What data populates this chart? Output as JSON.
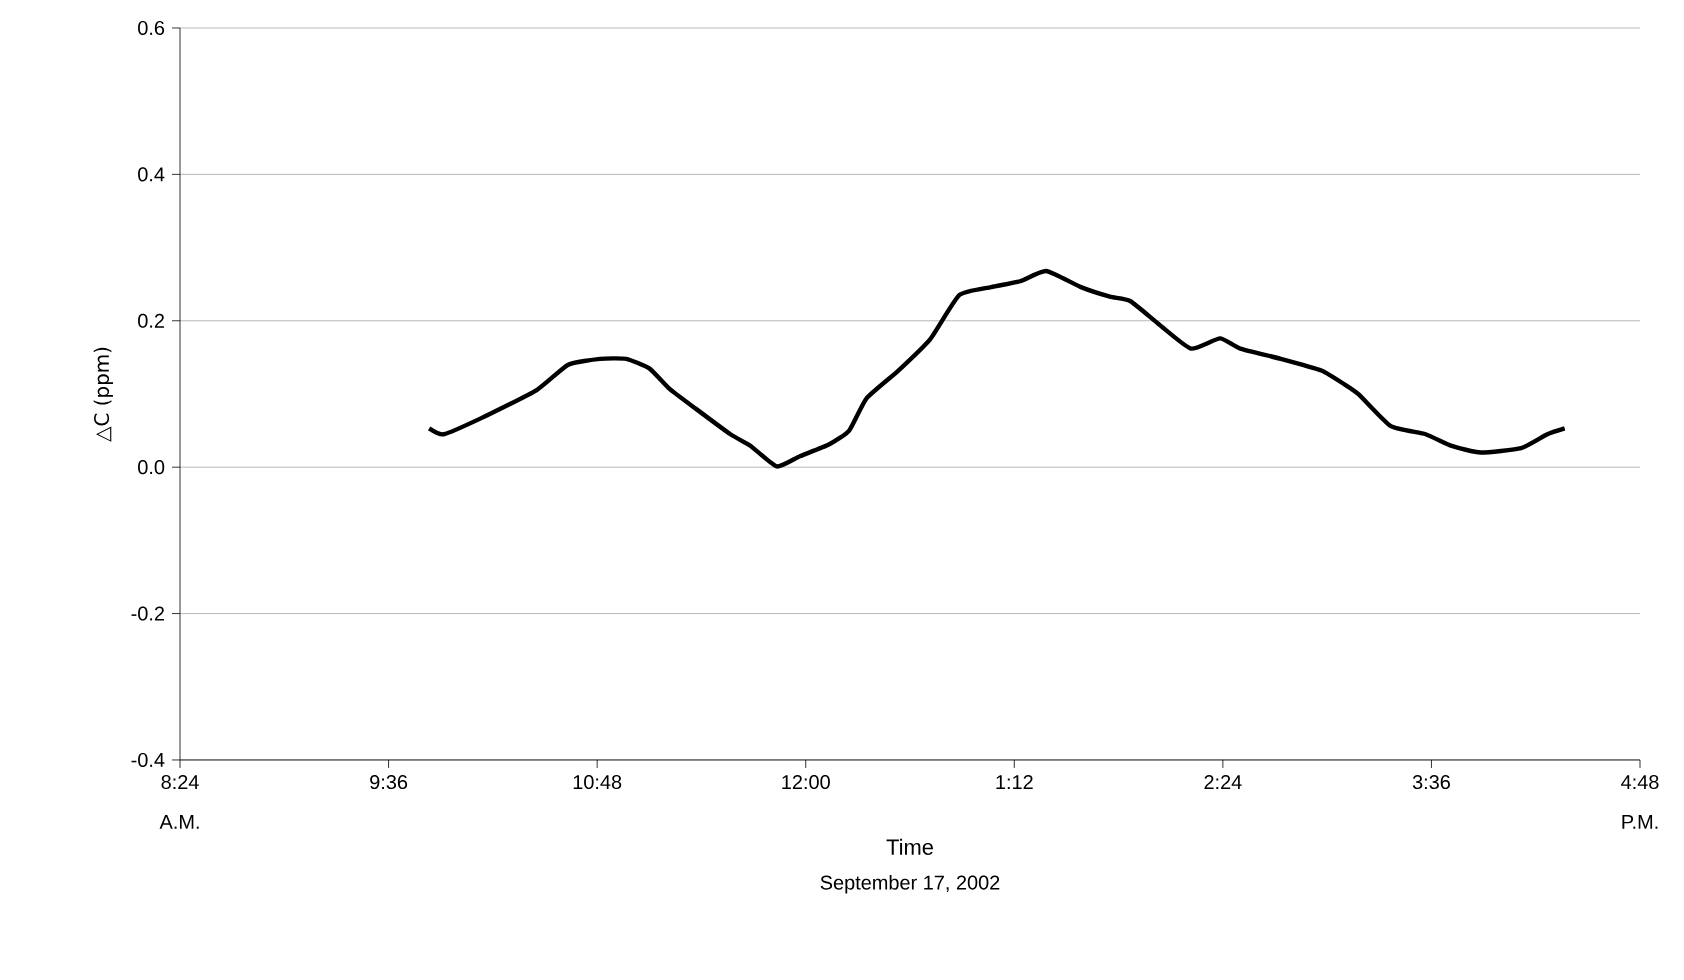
{
  "chart_data": {
    "type": "line",
    "xlabel": "Time",
    "ylabel": "△C (ppm)",
    "annotations": [
      "A.M.",
      "P.M.",
      "September 17, 2002"
    ],
    "x": [
      "2002-09-17T09:50",
      "2002-09-17T09:55",
      "2002-09-17T10:08",
      "2002-09-17T10:27",
      "2002-09-17T10:38",
      "2002-09-17T10:49",
      "2002-09-17T10:58",
      "2002-09-17T11:06",
      "2002-09-17T11:13",
      "2002-09-17T11:22",
      "2002-09-17T11:34",
      "2002-09-17T11:41",
      "2002-09-17T11:50",
      "2002-09-17T11:58",
      "2002-09-17T12:08",
      "2002-09-17T12:15",
      "2002-09-17T12:21",
      "2002-09-17T12:32",
      "2002-09-17T12:43",
      "2002-09-17T12:53",
      "2002-09-17T13:04",
      "2002-09-17T13:14",
      "2002-09-17T13:23",
      "2002-09-17T13:35",
      "2002-09-17T13:45",
      "2002-09-17T13:52",
      "2002-09-17T14:02",
      "2002-09-17T14:13",
      "2002-09-17T14:23",
      "2002-09-17T14:30",
      "2002-09-17T14:44",
      "2002-09-17T14:58",
      "2002-09-17T15:06",
      "2002-09-17T15:11",
      "2002-09-17T15:22",
      "2002-09-17T15:34",
      "2002-09-17T15:43",
      "2002-09-17T15:53",
      "2002-09-17T16:07",
      "2002-09-17T16:16",
      "2002-09-17T16:22"
    ],
    "series": [
      {
        "color": "#000000",
        "values": [
          0.053,
          0.045,
          0.067,
          0.105,
          0.14,
          0.148,
          0.148,
          0.135,
          0.107,
          0.08,
          0.045,
          0.029,
          0.001,
          0.015,
          0.031,
          0.05,
          0.094,
          0.132,
          0.175,
          0.235,
          0.246,
          0.254,
          0.268,
          0.246,
          0.233,
          0.227,
          0.195,
          0.162,
          0.176,
          0.162,
          0.148,
          0.132,
          0.113,
          0.099,
          0.056,
          0.045,
          0.029,
          0.02,
          0.026,
          0.045,
          0.053
        ]
      }
    ],
    "xlim": [
      "2002-09-17T08:24",
      "2002-09-17T16:48"
    ],
    "xticks": [
      {
        "value": "2002-09-17T08:24",
        "label": "8:24"
      },
      {
        "value": "2002-09-17T09:36",
        "label": "9:36"
      },
      {
        "value": "2002-09-17T10:48",
        "label": "10:48"
      },
      {
        "value": "2002-09-17T12:00",
        "label": "12:00"
      },
      {
        "value": "2002-09-17T13:12",
        "label": "1:12"
      },
      {
        "value": "2002-09-17T14:24",
        "label": "2:24"
      },
      {
        "value": "2002-09-17T15:36",
        "label": "3:36"
      },
      {
        "value": "2002-09-17T16:48",
        "label": "4:48"
      }
    ],
    "ylim": [
      -0.4,
      0.6
    ],
    "yticks": [
      {
        "value": -0.4,
        "label": "-0.4"
      },
      {
        "value": -0.2,
        "label": "-0.2"
      },
      {
        "value": 0,
        "label": "0.0"
      },
      {
        "value": 0.2,
        "label": "0.2"
      },
      {
        "value": 0.4,
        "label": "0.4"
      },
      {
        "value": 0.6,
        "label": "0.6"
      }
    ],
    "grid": "y",
    "line_style": "solid"
  }
}
